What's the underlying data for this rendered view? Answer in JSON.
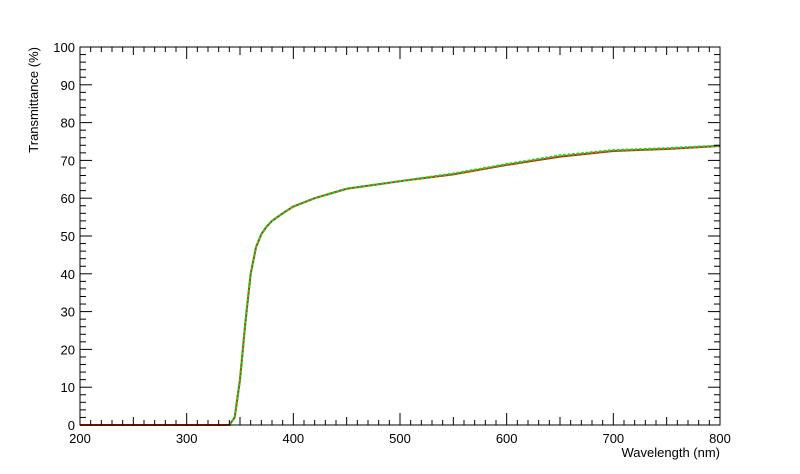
{
  "chart_data": {
    "type": "line",
    "title": "",
    "xlabel": "Wavelength (nm)",
    "ylabel": "Transmittance (%)",
    "xlim": [
      200,
      800
    ],
    "ylim": [
      0,
      100
    ],
    "x_major_ticks": [
      200,
      300,
      400,
      500,
      600,
      700,
      800
    ],
    "x_tick_labels": [
      "200",
      "300",
      "400",
      "500",
      "600",
      "700",
      "800"
    ],
    "y_major_ticks": [
      0,
      10,
      20,
      30,
      40,
      50,
      60,
      70,
      80,
      90,
      100
    ],
    "y_tick_labels": [
      "0",
      "10",
      "20",
      "30",
      "40",
      "50",
      "60",
      "70",
      "80",
      "90",
      "100"
    ],
    "grid": false,
    "legend": "none",
    "series": [
      {
        "color": "#cc2200",
        "x": [
          200,
          340,
          345,
          350,
          355,
          360,
          365,
          370,
          375,
          380,
          390,
          400,
          420,
          450,
          500,
          550,
          600,
          650,
          700,
          750,
          800
        ],
        "y": [
          0,
          0,
          2,
          12,
          27,
          40,
          47,
          50.5,
          52.5,
          54,
          56,
          57.8,
          60,
          62.5,
          64.5,
          66.3,
          68.8,
          71,
          72.5,
          73,
          73.8
        ]
      },
      {
        "color": "#22cc22",
        "x": [
          340,
          345,
          350,
          355,
          360,
          365,
          370,
          375,
          380,
          390,
          400,
          420,
          450,
          500,
          550,
          600,
          650,
          700,
          750,
          800
        ],
        "y": [
          0,
          2,
          12,
          27,
          40,
          47,
          50.5,
          52.5,
          54,
          56,
          57.8,
          60,
          62.5,
          64.5,
          66.5,
          69,
          71.3,
          72.7,
          73.2,
          73.9
        ]
      }
    ]
  }
}
